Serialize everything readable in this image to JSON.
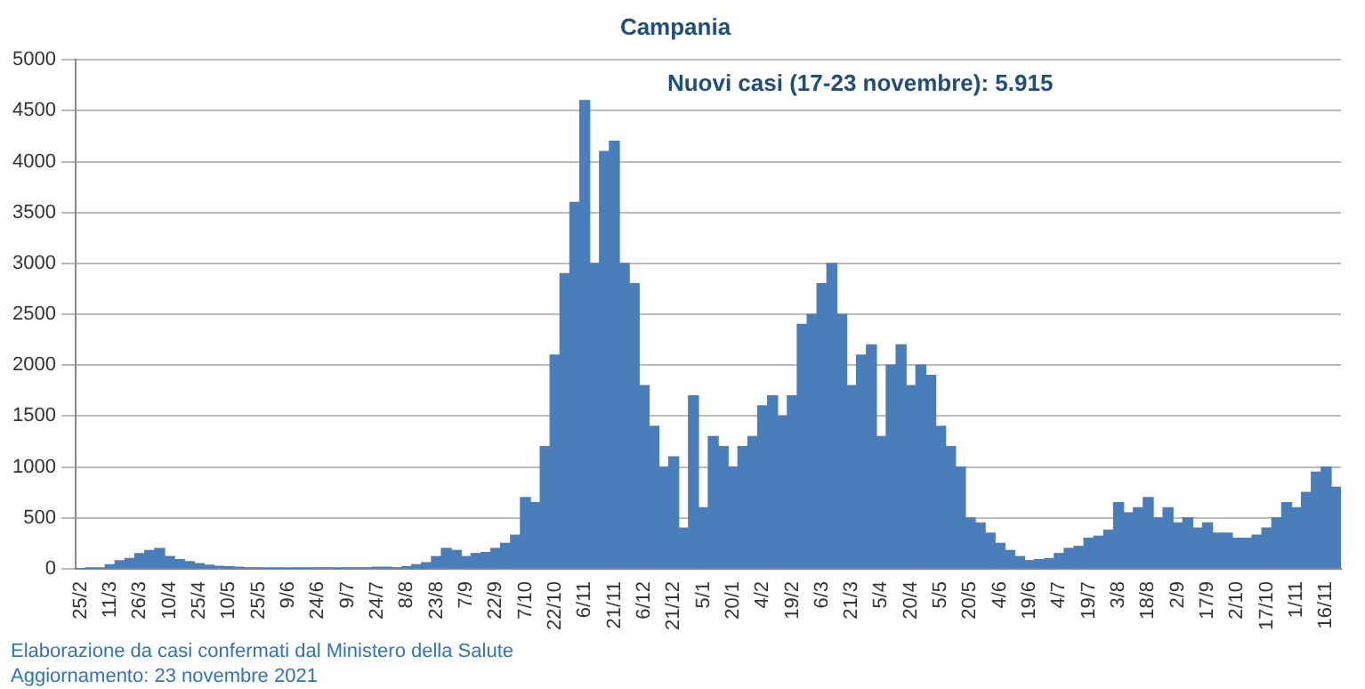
{
  "chart_data": {
    "type": "bar",
    "title": "Campania",
    "annotations": [
      "Nuovi casi (17-23 novembre): 5.915",
      "Elaborazione da casi confermati dal Ministero della Salute",
      "Aggiornamento: 23 novembre 2021"
    ],
    "categories": [
      "25/2",
      null,
      null,
      "11/3",
      null,
      null,
      "26/3",
      null,
      null,
      "10/4",
      null,
      null,
      "25/4",
      null,
      null,
      "10/5",
      null,
      null,
      "25/5",
      null,
      null,
      "9/6",
      null,
      null,
      "24/6",
      null,
      null,
      "9/7",
      null,
      null,
      "24/7",
      null,
      null,
      "8/8",
      null,
      null,
      "23/8",
      null,
      null,
      "7/9",
      null,
      null,
      "22/9",
      null,
      null,
      "7/10",
      null,
      null,
      "22/10",
      null,
      null,
      "6/11",
      null,
      null,
      "21/11",
      null,
      null,
      "6/12",
      null,
      null,
      "21/12",
      null,
      null,
      "5/1",
      null,
      null,
      "20/1",
      null,
      null,
      "4/2",
      null,
      null,
      "19/2",
      null,
      null,
      "6/3",
      null,
      null,
      "21/3",
      null,
      null,
      "5/4",
      null,
      null,
      "20/4",
      null,
      null,
      "5/5",
      null,
      null,
      "20/5",
      null,
      null,
      "4/6",
      null,
      null,
      "19/6",
      null,
      null,
      "4/7",
      null,
      null,
      "19/7",
      null,
      null,
      "3/8",
      null,
      null,
      "18/8",
      null,
      null,
      "2/9",
      null,
      null,
      "17/9",
      null,
      null,
      "2/10",
      null,
      null,
      "17/10",
      null,
      null,
      "1/11",
      null,
      null,
      "16/11",
      null
    ],
    "values": [
      0,
      5,
      10,
      40,
      80,
      100,
      150,
      180,
      200,
      120,
      90,
      70,
      50,
      35,
      25,
      20,
      15,
      10,
      10,
      5,
      5,
      5,
      5,
      5,
      10,
      10,
      5,
      10,
      10,
      10,
      15,
      15,
      10,
      20,
      40,
      60,
      120,
      200,
      180,
      120,
      150,
      160,
      200,
      250,
      330,
      700,
      650,
      1200,
      2100,
      2900,
      3600,
      4600,
      3000,
      4100,
      4200,
      3000,
      2800,
      1800,
      1400,
      1000,
      1100,
      400,
      1700,
      600,
      1300,
      1200,
      1000,
      1200,
      1300,
      1600,
      1700,
      1500,
      1700,
      2400,
      2500,
      2800,
      3000,
      2500,
      1800,
      2100,
      2200,
      1300,
      2000,
      2200,
      1800,
      2000,
      1900,
      1400,
      1200,
      1000,
      500,
      450,
      350,
      250,
      180,
      120,
      80,
      90,
      100,
      150,
      200,
      220,
      300,
      320,
      380,
      650,
      550,
      600,
      700,
      500,
      600,
      450,
      500,
      400,
      450,
      350,
      350,
      300,
      300,
      330,
      400,
      500,
      650,
      600,
      750,
      950,
      1000,
      800
    ],
    "color": "#4a7ebb",
    "ylim": [
      0,
      5000
    ],
    "yticks": [
      0,
      500,
      1000,
      1500,
      2000,
      2500,
      3000,
      3500,
      4000,
      4500,
      5000
    ],
    "grid": "y",
    "legend": false
  }
}
